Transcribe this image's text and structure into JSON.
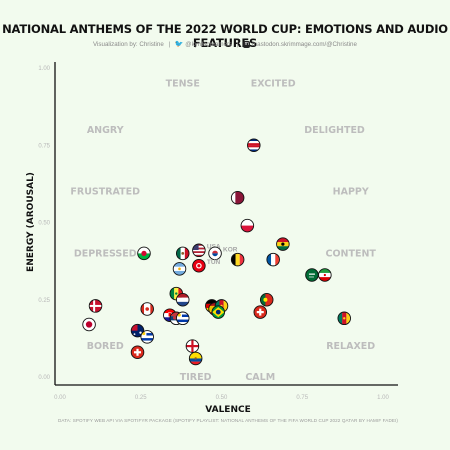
{
  "header": {
    "title": "NATIONAL ANTHEMS OF THE 2022 WORLD CUP: EMOTIONS AND AUDIO FEATURES",
    "credit_by": "Visualization by: Christine",
    "credit_twitter": "@kyrdscreamers",
    "credit_mastodon": "mastodon.skrimmage.com/@Christine"
  },
  "footer": "DATA: SPOTIFY WEB API VIA SPOTIFYR PACKAGE (SPOTIFY PLAYLIST: NATIONAL ANTHEMS OF THE FIFA WORLD CUP 2022 QATAR BY HAMIF FADEI)",
  "chart_data": {
    "type": "scatter",
    "xlabel": "VALENCE",
    "ylabel": "ENERGY (AROUSAL)",
    "xlim": [
      0,
      1
    ],
    "ylim": [
      0,
      1
    ],
    "x_ticks": [
      "0.00",
      "0.25",
      "0.50",
      "0.75",
      "1.00"
    ],
    "y_ticks": [
      "0.00",
      "0.25",
      "0.50",
      "0.75",
      "1.00"
    ],
    "grid": false,
    "emotion_labels": [
      {
        "text": "TENSE",
        "x": 0.38,
        "y": 0.95
      },
      {
        "text": "EXCITED",
        "x": 0.66,
        "y": 0.95
      },
      {
        "text": "ANGRY",
        "x": 0.14,
        "y": 0.8
      },
      {
        "text": "DELIGHTED",
        "x": 0.85,
        "y": 0.8
      },
      {
        "text": "FRUSTRATED",
        "x": 0.14,
        "y": 0.6
      },
      {
        "text": "HAPPY",
        "x": 0.9,
        "y": 0.6
      },
      {
        "text": "DEPRESSED",
        "x": 0.14,
        "y": 0.4
      },
      {
        "text": "CONTENT",
        "x": 0.9,
        "y": 0.4
      },
      {
        "text": "BORED",
        "x": 0.14,
        "y": 0.1
      },
      {
        "text": "RELAXED",
        "x": 0.9,
        "y": 0.1
      },
      {
        "text": "TIRED",
        "x": 0.42,
        "y": 0.0
      },
      {
        "text": "CALM",
        "x": 0.62,
        "y": 0.0
      }
    ],
    "points": [
      {
        "flag": "costa-rica",
        "x": 0.6,
        "y": 0.75
      },
      {
        "flag": "qatar",
        "x": 0.55,
        "y": 0.58
      },
      {
        "flag": "poland",
        "x": 0.58,
        "y": 0.49
      },
      {
        "flag": "ghana",
        "x": 0.69,
        "y": 0.43
      },
      {
        "flag": "wales",
        "x": 0.26,
        "y": 0.4
      },
      {
        "flag": "mexico",
        "x": 0.38,
        "y": 0.4
      },
      {
        "flag": "usa",
        "x": 0.43,
        "y": 0.41,
        "label": "USA"
      },
      {
        "flag": "korea",
        "x": 0.48,
        "y": 0.4,
        "label": "KOR"
      },
      {
        "flag": "belgium",
        "x": 0.55,
        "y": 0.38
      },
      {
        "flag": "france",
        "x": 0.66,
        "y": 0.38
      },
      {
        "flag": "argentina",
        "x": 0.37,
        "y": 0.35
      },
      {
        "flag": "tunisia",
        "x": 0.43,
        "y": 0.36,
        "label": "TUN"
      },
      {
        "flag": "saudi-arabia",
        "x": 0.78,
        "y": 0.33
      },
      {
        "flag": "iran",
        "x": 0.82,
        "y": 0.33
      },
      {
        "flag": "senegal",
        "x": 0.36,
        "y": 0.27
      },
      {
        "flag": "netherlands",
        "x": 0.38,
        "y": 0.25
      },
      {
        "flag": "denmark",
        "x": 0.11,
        "y": 0.23
      },
      {
        "flag": "canada",
        "x": 0.27,
        "y": 0.22
      },
      {
        "flag": "germany",
        "x": 0.47,
        "y": 0.23
      },
      {
        "flag": "spain",
        "x": 0.48,
        "y": 0.22
      },
      {
        "flag": "cameroon",
        "x": 0.5,
        "y": 0.23
      },
      {
        "flag": "portugal",
        "x": 0.64,
        "y": 0.25
      },
      {
        "flag": "switzerland-2",
        "x": 0.62,
        "y": 0.21
      },
      {
        "flag": "croatia",
        "x": 0.34,
        "y": 0.2
      },
      {
        "flag": "serbia",
        "x": 0.36,
        "y": 0.19
      },
      {
        "flag": "uruguay",
        "x": 0.38,
        "y": 0.19
      },
      {
        "flag": "brazil",
        "x": 0.49,
        "y": 0.21
      },
      {
        "flag": "cameroon-2",
        "x": 0.88,
        "y": 0.19
      },
      {
        "flag": "japan",
        "x": 0.09,
        "y": 0.17
      },
      {
        "flag": "australia",
        "x": 0.24,
        "y": 0.15
      },
      {
        "flag": "uruguay-2",
        "x": 0.27,
        "y": 0.13
      },
      {
        "flag": "england",
        "x": 0.41,
        "y": 0.1
      },
      {
        "flag": "switzerland",
        "x": 0.24,
        "y": 0.08
      },
      {
        "flag": "ecuador",
        "x": 0.42,
        "y": 0.06
      }
    ]
  }
}
